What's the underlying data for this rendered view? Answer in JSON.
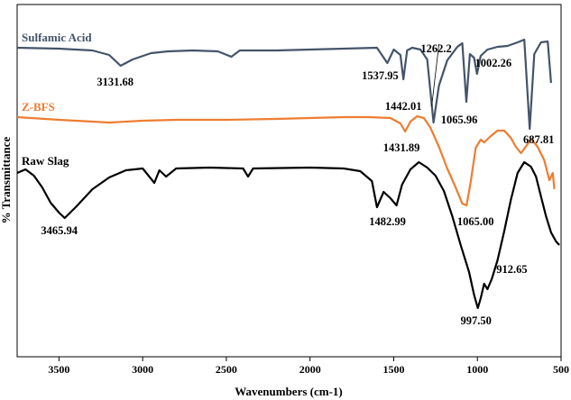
{
  "chart_data": {
    "type": "line",
    "title": "",
    "xlabel": "Wavenumbers (cm-1)",
    "ylabel": "% Transmittance",
    "xlim": [
      3750,
      500
    ],
    "x_reversed": true,
    "x_ticks": [
      3500,
      3000,
      2500,
      2000,
      1500,
      1000,
      500
    ],
    "y_ticks_shown": false,
    "grid": false,
    "series": [
      {
        "name": "Sulfamic Acid",
        "color": "#44546a",
        "points": [
          [
            3750,
            53
          ],
          [
            3500,
            54
          ],
          [
            3300,
            56
          ],
          [
            3200,
            61
          ],
          [
            3131.68,
            73
          ],
          [
            3060,
            66
          ],
          [
            2950,
            59
          ],
          [
            2850,
            57
          ],
          [
            2700,
            56
          ],
          [
            2550,
            57
          ],
          [
            2470,
            63
          ],
          [
            2420,
            56
          ],
          [
            2200,
            56
          ],
          [
            2000,
            55
          ],
          [
            1800,
            54
          ],
          [
            1600,
            53
          ],
          [
            1537.95,
            70
          ],
          [
            1500,
            55
          ],
          [
            1460,
            61
          ],
          [
            1442.01,
            88
          ],
          [
            1420,
            56
          ],
          [
            1390,
            53
          ],
          [
            1340,
            55
          ],
          [
            1300,
            66
          ],
          [
            1262.2,
            136
          ],
          [
            1230,
            95
          ],
          [
            1180,
            67
          ],
          [
            1120,
            52
          ],
          [
            1090,
            48
          ],
          [
            1065.96,
            113
          ],
          [
            1045,
            60
          ],
          [
            1020,
            64
          ],
          [
            1002.26,
            82
          ],
          [
            980,
            62
          ],
          [
            940,
            55
          ],
          [
            880,
            52
          ],
          [
            820,
            51
          ],
          [
            760,
            47
          ],
          [
            720,
            44
          ],
          [
            687.81,
            143
          ],
          [
            660,
            60
          ],
          [
            620,
            47
          ],
          [
            580,
            46
          ],
          [
            560,
            92
          ]
        ]
      },
      {
        "name": "Z-BFS",
        "color": "#ed7d31",
        "points": [
          [
            3750,
            130
          ],
          [
            3500,
            133
          ],
          [
            3200,
            136
          ],
          [
            3000,
            134
          ],
          [
            2800,
            133
          ],
          [
            2500,
            133
          ],
          [
            2200,
            132
          ],
          [
            2000,
            131
          ],
          [
            1800,
            130
          ],
          [
            1650,
            130
          ],
          [
            1520,
            131
          ],
          [
            1460,
            137
          ],
          [
            1431.89,
            146
          ],
          [
            1400,
            135
          ],
          [
            1360,
            129
          ],
          [
            1320,
            131
          ],
          [
            1280,
            142
          ],
          [
            1230,
            163
          ],
          [
            1180,
            187
          ],
          [
            1130,
            208
          ],
          [
            1090,
            226
          ],
          [
            1065.0,
            228
          ],
          [
            1040,
            202
          ],
          [
            1010,
            164
          ],
          [
            980,
            155
          ],
          [
            960,
            158
          ],
          [
            920,
            151
          ],
          [
            880,
            145
          ],
          [
            840,
            145
          ],
          [
            800,
            153
          ],
          [
            770,
            163
          ],
          [
            740,
            170
          ],
          [
            700,
            160
          ],
          [
            680,
            154
          ],
          [
            640,
            163
          ],
          [
            600,
            178
          ],
          [
            570,
            200
          ],
          [
            550,
            192
          ],
          [
            540,
            210
          ]
        ]
      },
      {
        "name": "Raw Slag",
        "color": "#000000",
        "points": [
          [
            3750,
            192
          ],
          [
            3700,
            188
          ],
          [
            3650,
            195
          ],
          [
            3600,
            208
          ],
          [
            3550,
            225
          ],
          [
            3500,
            236
          ],
          [
            3465.94,
            242
          ],
          [
            3400,
            230
          ],
          [
            3300,
            210
          ],
          [
            3200,
            197
          ],
          [
            3100,
            189
          ],
          [
            3000,
            187
          ],
          [
            2930,
            203
          ],
          [
            2900,
            189
          ],
          [
            2860,
            196
          ],
          [
            2800,
            187
          ],
          [
            2600,
            186
          ],
          [
            2400,
            187
          ],
          [
            2370,
            196
          ],
          [
            2340,
            187
          ],
          [
            2000,
            186
          ],
          [
            1800,
            187
          ],
          [
            1700,
            190
          ],
          [
            1630,
            201
          ],
          [
            1600,
            230
          ],
          [
            1560,
            213
          ],
          [
            1520,
            220
          ],
          [
            1482.99,
            228
          ],
          [
            1450,
            205
          ],
          [
            1400,
            188
          ],
          [
            1350,
            180
          ],
          [
            1300,
            186
          ],
          [
            1250,
            195
          ],
          [
            1200,
            212
          ],
          [
            1150,
            240
          ],
          [
            1100,
            272
          ],
          [
            1050,
            302
          ],
          [
            1020,
            327
          ],
          [
            997.5,
            342
          ],
          [
            980,
            331
          ],
          [
            960,
            315
          ],
          [
            940,
            321
          ],
          [
            912.65,
            309
          ],
          [
            880,
            289
          ],
          [
            840,
            257
          ],
          [
            800,
            222
          ],
          [
            760,
            192
          ],
          [
            720,
            180
          ],
          [
            680,
            185
          ],
          [
            650,
            196
          ],
          [
            620,
            218
          ],
          [
            590,
            240
          ],
          [
            560,
            258
          ],
          [
            530,
            268
          ],
          [
            510,
            272
          ]
        ]
      }
    ],
    "annotations": [
      {
        "text": "3131.68",
        "series": "Sulfamic Acid",
        "x": 3131.68
      },
      {
        "text": "1537.95",
        "series": "Sulfamic Acid",
        "x": 1537.95
      },
      {
        "text": "1442.01",
        "series": "Sulfamic Acid",
        "x": 1442.01
      },
      {
        "text": "1262.2",
        "series": "Sulfamic Acid",
        "x": 1262.2
      },
      {
        "text": "1065.96",
        "series": "Sulfamic Acid",
        "x": 1065.96
      },
      {
        "text": "1002.26",
        "series": "Sulfamic Acid",
        "x": 1002.26
      },
      {
        "text": "687.81",
        "series": "Sulfamic Acid",
        "x": 687.81
      },
      {
        "text": "1431.89",
        "series": "Z-BFS",
        "x": 1431.89
      },
      {
        "text": "1065.00",
        "series": "Z-BFS",
        "x": 1065.0
      },
      {
        "text": "3465.94",
        "series": "Raw Slag",
        "x": 3465.94
      },
      {
        "text": "1482.99",
        "series": "Raw Slag",
        "x": 1482.99
      },
      {
        "text": "997.50",
        "series": "Raw Slag",
        "x": 997.5
      },
      {
        "text": "912.65",
        "series": "Raw Slag",
        "x": 912.65
      }
    ]
  }
}
